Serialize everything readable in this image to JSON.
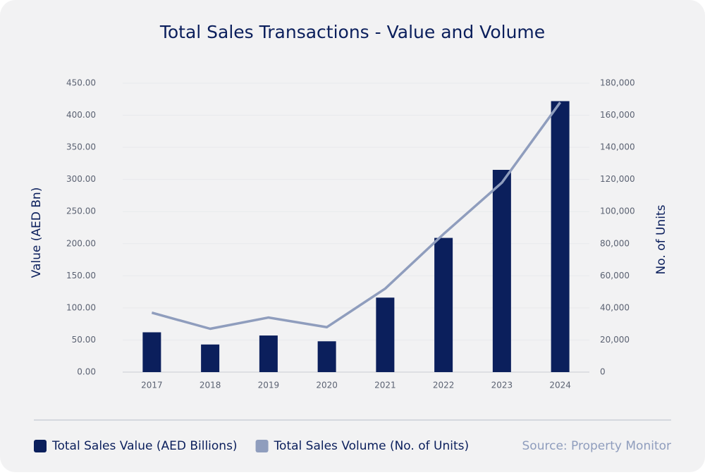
{
  "chart_data": {
    "type": "bar",
    "title": "Total Sales Transactions - Value and Volume",
    "y_label": "Value (AED Bn)",
    "y2_label": "No. of Units",
    "source": "Source: Property Monitor",
    "categories": [
      "2017",
      "2018",
      "2019",
      "2020",
      "2021",
      "2022",
      "2023",
      "2024"
    ],
    "series": [
      {
        "name": "Total Sales Value (AED Billions)",
        "type": "bar",
        "color": "#0b1f5c",
        "values": [
          62,
          43,
          57,
          48,
          116,
          209,
          315,
          422
        ]
      },
      {
        "name": "Total Sales Volume (No. of Units)",
        "type": "line",
        "axis": "y2",
        "color": "#8f9dbd",
        "values": [
          37000,
          27000,
          34000,
          28000,
          52000,
          86000,
          118000,
          168000
        ]
      }
    ],
    "ylim": [
      0,
      450
    ],
    "yticks": [
      {
        "value": 0,
        "label": "0.00"
      },
      {
        "value": 50,
        "label": "50.00"
      },
      {
        "value": 100,
        "label": "100.00"
      },
      {
        "value": 150,
        "label": "150.00"
      },
      {
        "value": 200,
        "label": "200.00"
      },
      {
        "value": 250,
        "label": "250.00"
      },
      {
        "value": 300,
        "label": "300.00"
      },
      {
        "value": 350,
        "label": "350.00"
      },
      {
        "value": 400,
        "label": "400.00"
      },
      {
        "value": 450,
        "label": "450.00"
      }
    ],
    "y2lim": [
      0,
      180000
    ],
    "y2ticks": [
      0,
      {
        "value": 20000,
        "label": "20,000"
      },
      {
        "value": 40000,
        "label": "40,000"
      },
      {
        "value": 60000,
        "label": "60,000"
      },
      {
        "value": 80000,
        "label": "80,000"
      },
      {
        "value": 100000,
        "label": "100,000"
      },
      {
        "value": 120000,
        "label": "120,000"
      },
      {
        "value": 140000,
        "label": "140,000"
      },
      {
        "value": 160000,
        "label": "160,000"
      },
      {
        "value": 180000,
        "label": "180,000"
      }
    ],
    "grid": true
  }
}
